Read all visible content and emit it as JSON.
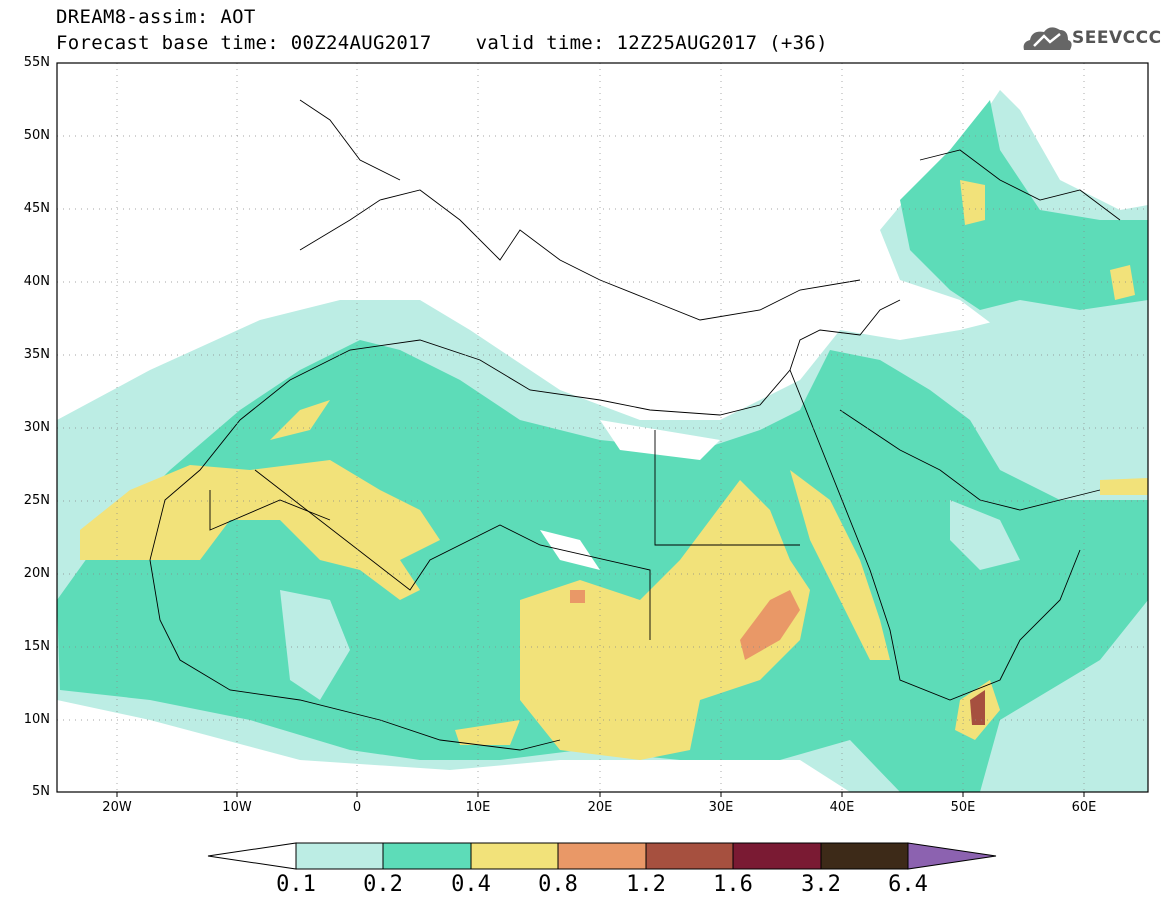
{
  "title": {
    "line1": "DREAM8-assim: AOT",
    "base": "Forecast base time: 00Z24AUG2017",
    "valid": "valid time: 12Z25AUG2017 (+36)"
  },
  "logo": {
    "text": "SEEVCCC",
    "icon": "cloud-icon"
  },
  "map": {
    "lon_range": [
      -25,
      65
    ],
    "lat_range": [
      5,
      55
    ],
    "lat_ticks": [
      "5N",
      "10N",
      "15N",
      "20N",
      "25N",
      "30N",
      "35N",
      "40N",
      "45N",
      "50N",
      "55N"
    ],
    "lon_ticks": [
      "20W",
      "10W",
      "0",
      "10E",
      "20E",
      "30E",
      "40E",
      "50E",
      "60E"
    ],
    "grid": "dotted"
  },
  "colorbar": {
    "labels": [
      "0.1",
      "0.2",
      "0.4",
      "0.8",
      "1.2",
      "1.6",
      "3.2",
      "6.4"
    ],
    "colors": [
      "#bcede4",
      "#5ddcb8",
      "#f2e27a",
      "#e99867",
      "#a6503f",
      "#7a1a33",
      "#3d2a18",
      "#8c62b0"
    ],
    "under_color": "#ffffff"
  }
}
